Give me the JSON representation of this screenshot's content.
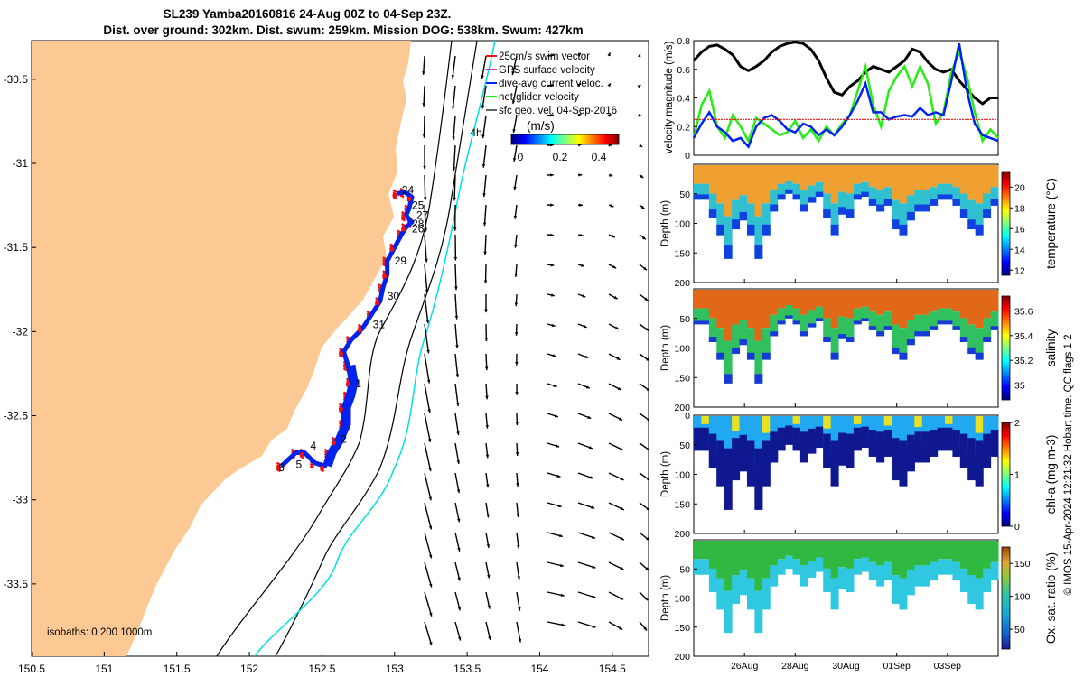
{
  "title_line1": "SL239 Yamba20160816 24-Aug 00Z to 04-Sep 23Z.",
  "title_line2": "Dist. over ground: 302km. Dist. swum: 259km. Mission DOG: 538km. Swum: 427km",
  "credit": "© IMOS 15-Apr-2024 12:21:32 Hobart time. QC flags 1  2",
  "colors": {
    "land": "#fcc893",
    "track_blue": "#0022ee",
    "track_red": "#ee1111",
    "shelf_line": "#00e0e0",
    "net_green": "#22ee11",
    "black": "#000000"
  },
  "chart_data": [
    {
      "id": "map",
      "type": "scatter",
      "xlabel": "",
      "ylabel": "",
      "xlim": [
        150.5,
        154.75
      ],
      "ylim": [
        -33.93,
        -30.27
      ],
      "xticks": [
        "150.5",
        "151",
        "151.5",
        "152",
        "152.5",
        "153",
        "153.5",
        "154",
        "154.5"
      ],
      "xtick_values": [
        150.5,
        151,
        151.5,
        152,
        152.5,
        153,
        153.5,
        154,
        154.5
      ],
      "yticks": [
        "-30.5",
        "-31",
        "-31.5",
        "-32",
        "-32.5",
        "-33",
        "-33.5"
      ],
      "ytick_values": [
        -30.5,
        -31,
        -31.5,
        -32,
        -32.5,
        -33,
        -33.5
      ],
      "legend": [
        {
          "label": "25cm/s swim vector",
          "color": "#ee1111"
        },
        {
          "label": "GPS surface velocity",
          "color": "#cc33cc"
        },
        {
          "label": "dive-avg current veloc.",
          "color": "#0022ee"
        },
        {
          "label": "net glider velocity",
          "color": "#22ee11"
        },
        {
          "label": "sfc geo. vel. 04-Sep-2016",
          "color": "#000000"
        }
      ],
      "legend_position": "top-right",
      "colorbar": {
        "label": "(m/s)",
        "ticks": [
          "0",
          "0.2",
          "0.4"
        ],
        "range": [
          0,
          0.5
        ]
      },
      "isobaths_label": "isobaths: 0   200  1000m",
      "day_markers": [
        {
          "label": "24",
          "lon": 153.05,
          "lat": -31.18
        },
        {
          "label": "25",
          "lon": 153.12,
          "lat": -31.27
        },
        {
          "label": "27",
          "lon": 153.15,
          "lat": -31.33
        },
        {
          "label": "28",
          "lon": 153.12,
          "lat": -31.38
        },
        {
          "label": "26",
          "lon": 153.12,
          "lat": -31.41
        },
        {
          "label": "29",
          "lon": 153.0,
          "lat": -31.6
        },
        {
          "label": "30",
          "lon": 152.95,
          "lat": -31.81
        },
        {
          "label": "31",
          "lon": 152.85,
          "lat": -31.98
        },
        {
          "label": "1",
          "lon": 152.73,
          "lat": -32.33
        },
        {
          "label": "2",
          "lon": 152.63,
          "lat": -32.66
        },
        {
          "label": "4",
          "lon": 152.42,
          "lat": -32.7
        },
        {
          "label": "5",
          "lon": 152.32,
          "lat": -32.81
        },
        {
          "label": "6",
          "lon": 152.2,
          "lat": -32.83
        },
        {
          "label": "4h",
          "lon": 153.52,
          "lat": -30.84
        }
      ]
    },
    {
      "id": "velocity",
      "type": "line",
      "ylabel": "velocity magnitude (m/s)",
      "ylim": [
        0,
        0.8
      ],
      "yticks": [
        "0",
        "0.2",
        "0.4",
        "0.6",
        "0.8"
      ],
      "xlim": [
        0,
        12
      ],
      "series": [
        {
          "color": "#000000",
          "values": [
            0.66,
            0.72,
            0.76,
            0.77,
            0.74,
            0.7,
            0.62,
            0.59,
            0.62,
            0.66,
            0.72,
            0.76,
            0.78,
            0.79,
            0.78,
            0.74,
            0.66,
            0.54,
            0.44,
            0.42,
            0.48,
            0.52,
            0.58,
            0.62,
            0.6,
            0.58,
            0.62,
            0.66,
            0.74,
            0.72,
            0.65,
            0.6,
            0.58,
            0.6,
            0.52,
            0.46,
            0.4,
            0.36,
            0.4,
            0.4
          ]
        },
        {
          "color": "#22ee11",
          "values": [
            0.12,
            0.35,
            0.45,
            0.2,
            0.12,
            0.28,
            0.2,
            0.1,
            0.26,
            0.22,
            0.18,
            0.14,
            0.16,
            0.24,
            0.12,
            0.18,
            0.1,
            0.2,
            0.14,
            0.22,
            0.28,
            0.45,
            0.62,
            0.35,
            0.2,
            0.45,
            0.55,
            0.62,
            0.48,
            0.62,
            0.5,
            0.22,
            0.3,
            0.58,
            0.72,
            0.55,
            0.3,
            0.1,
            0.18,
            0.12
          ]
        },
        {
          "color": "#0022ee",
          "values": [
            0.12,
            0.22,
            0.3,
            0.2,
            0.16,
            0.1,
            0.12,
            0.06,
            0.2,
            0.26,
            0.28,
            0.24,
            0.18,
            0.16,
            0.22,
            0.2,
            0.14,
            0.18,
            0.14,
            0.2,
            0.28,
            0.38,
            0.5,
            0.3,
            0.3,
            0.25,
            0.27,
            0.28,
            0.27,
            0.33,
            0.28,
            0.3,
            0.28,
            0.52,
            0.78,
            0.45,
            0.22,
            0.14,
            0.12,
            0.1
          ]
        },
        {
          "color": "#ee1111",
          "values": [
            0.25,
            0.25,
            0.25,
            0.25,
            0.25,
            0.25,
            0.25,
            0.25,
            0.25,
            0.25,
            0.25,
            0.25,
            0.25,
            0.25,
            0.25,
            0.25,
            0.25,
            0.25,
            0.25,
            0.25,
            0.25,
            0.25,
            0.25,
            0.25,
            0.25,
            0.25,
            0.25,
            0.25,
            0.25,
            0.25,
            0.25,
            0.25,
            0.25,
            0.25,
            0.25,
            0.25,
            0.25,
            0.25,
            0.25,
            0.25
          ]
        }
      ]
    },
    {
      "id": "temperature",
      "type": "heatmap",
      "ylabel": "Depth (m)",
      "ylim": [
        0,
        200
      ],
      "yticks": [
        "",
        "50",
        "100",
        "150",
        "200"
      ],
      "colorbar": {
        "label": "temperature (°C)",
        "ticks": [
          "12",
          "14",
          "16",
          "18",
          "20"
        ],
        "range": [
          11.5,
          21.5
        ]
      },
      "bottom_depth": [
        60,
        60,
        90,
        120,
        160,
        110,
        95,
        120,
        160,
        120,
        80,
        60,
        50,
        60,
        80,
        65,
        55,
        90,
        120,
        85,
        90,
        60,
        55,
        70,
        80,
        70,
        110,
        120,
        95,
        80,
        80,
        70,
        60,
        60,
        70,
        90,
        110,
        120,
        90,
        70
      ],
      "surface_warm": [
        21,
        21,
        20.5,
        21,
        20,
        20.5,
        20.5,
        21,
        20,
        20.5,
        20.5,
        20,
        19.5,
        20,
        20.5,
        20.5,
        20,
        20.5,
        20,
        20.5,
        19.5,
        20,
        20.5,
        20.5,
        20.5,
        21,
        20.5,
        20,
        20,
        20.5,
        20,
        20.5,
        20,
        21,
        20.5,
        20.5,
        20.5,
        20,
        20,
        20
      ]
    },
    {
      "id": "salinity",
      "type": "heatmap",
      "ylabel": "Depth (m)",
      "ylim": [
        0,
        200
      ],
      "yticks": [
        "",
        "50",
        "100",
        "150",
        "200"
      ],
      "colorbar": {
        "label": "salinity",
        "ticks": [
          "35",
          "35.2",
          "35.4",
          "35.6"
        ],
        "range": [
          34.88,
          35.72
        ]
      },
      "bottom_depth": [
        60,
        60,
        90,
        120,
        160,
        110,
        95,
        120,
        160,
        120,
        80,
        60,
        50,
        60,
        80,
        65,
        55,
        90,
        120,
        85,
        90,
        60,
        55,
        70,
        80,
        70,
        110,
        120,
        95,
        80,
        80,
        70,
        60,
        60,
        70,
        90,
        110,
        120,
        90,
        70
      ]
    },
    {
      "id": "chla",
      "type": "heatmap",
      "ylabel": "Depth (m)",
      "ylim": [
        0,
        200
      ],
      "yticks": [
        "0",
        "50",
        "100",
        "150",
        "200"
      ],
      "colorbar": {
        "label": "chl-a (mg m-3)",
        "ticks": [
          "0",
          "1",
          "2"
        ],
        "range": [
          0,
          2
        ]
      },
      "bottom_depth": [
        60,
        60,
        90,
        120,
        160,
        110,
        95,
        120,
        160,
        120,
        80,
        60,
        50,
        60,
        80,
        65,
        55,
        90,
        120,
        85,
        90,
        60,
        55,
        70,
        80,
        70,
        110,
        120,
        95,
        80,
        80,
        70,
        60,
        60,
        70,
        90,
        110,
        120,
        90,
        70
      ]
    },
    {
      "id": "oxygen",
      "type": "heatmap",
      "ylabel": "Depth (m)",
      "ylim": [
        0,
        200
      ],
      "yticks": [
        "",
        "50",
        "100",
        "150",
        "200"
      ],
      "colorbar": {
        "label": "Ox. sat. ratio (%)",
        "ticks": [
          "50",
          "100",
          "150"
        ],
        "range": [
          20,
          175
        ]
      },
      "bottom_depth": [
        60,
        60,
        90,
        120,
        160,
        110,
        95,
        120,
        160,
        120,
        80,
        60,
        50,
        60,
        80,
        65,
        55,
        90,
        120,
        85,
        90,
        60,
        55,
        70,
        80,
        70,
        110,
        120,
        95,
        80,
        80,
        70,
        60,
        60,
        70,
        90,
        110,
        120,
        90,
        70
      ],
      "xticks": [
        "26Aug",
        "28Aug",
        "30Aug",
        "01Sep",
        "03Sep"
      ],
      "xtick_values": [
        2,
        4,
        6,
        8,
        10
      ]
    }
  ]
}
